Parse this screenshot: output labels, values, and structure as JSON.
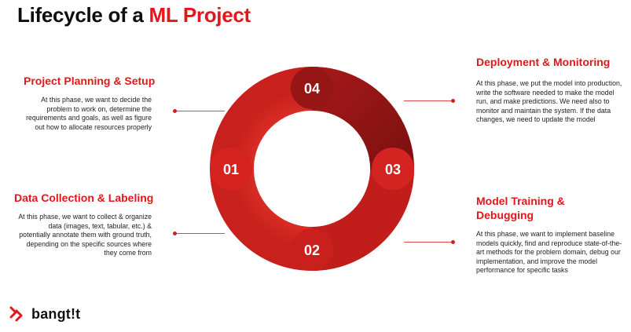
{
  "title": {
    "prefix": "Lifecycle of a ",
    "accent": "ML Project"
  },
  "stages": [
    {
      "number": "01",
      "heading": "Project Planning & Setup",
      "description": "At this phase, we want to decide the problem to work on, determine the requirements and goals, as well as figure out how to allocate resources properly"
    },
    {
      "number": "02",
      "heading": "Data Collection & Labeling",
      "description": "At this phase, we want to collect & organize data (images, text, tabular, etc.) & potentially annotate them with ground truth, depending on the specific sources where they come from"
    },
    {
      "number": "03",
      "heading": "Model Training & Debugging",
      "description": "At this phase, we want to implement baseline models quickly, find and reproduce state-of-the-art methods for the problem domain, debug our implementation, and improve the model performance for specific tasks"
    },
    {
      "number": "04",
      "heading": "Deployment & Monitoring",
      "description": "At this phase, we put the model into production, write the software needed to make the model run, and make predictions. We need also to monitor and maintain the system. If the data changes, we need to update the model"
    }
  ],
  "colors": {
    "accent": "#e3161b",
    "ring_light": "#d5231f",
    "ring_dark": "#8e1512"
  },
  "logo": {
    "text": "bangt!t",
    "icon": "bangkit-logo-icon"
  }
}
